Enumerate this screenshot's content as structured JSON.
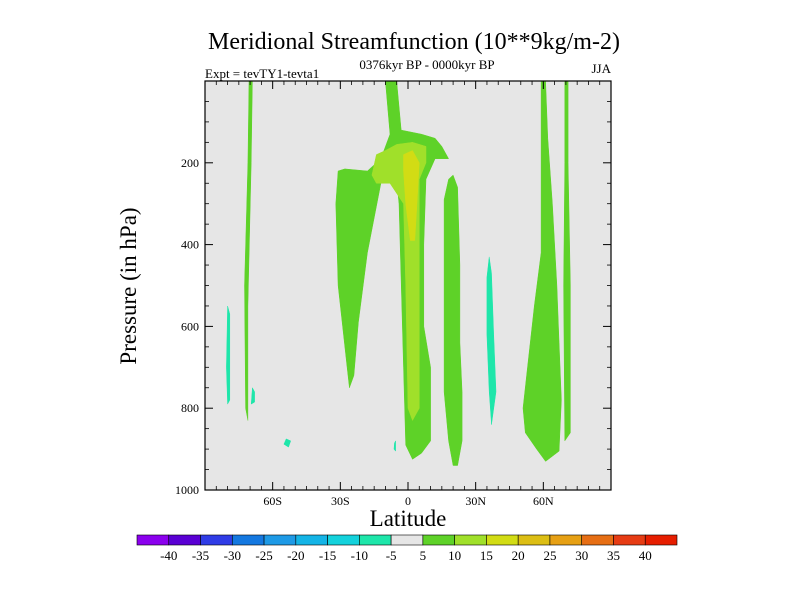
{
  "chart_data": {
    "type": "heatmap",
    "title": "Meridional Streamfunction (10**9kg/m-2)",
    "subtitle": "0376kyr BP - 0000kyr BP",
    "left_label": "Expt = tevTY1-tevta1",
    "right_label": "JJA",
    "xlabel": "Latitude",
    "ylabel": "Pressure (in hPa)",
    "xlim": [
      -90,
      90
    ],
    "ylim": [
      1000,
      0
    ],
    "x_ticks": [
      {
        "value": -60,
        "label": "60S"
      },
      {
        "value": -30,
        "label": "30S"
      },
      {
        "value": 0,
        "label": "0"
      },
      {
        "value": 30,
        "label": "30N"
      },
      {
        "value": 60,
        "label": "60N"
      }
    ],
    "y_ticks": [
      {
        "value": 200,
        "label": "200"
      },
      {
        "value": 400,
        "label": "400"
      },
      {
        "value": 600,
        "label": "600"
      },
      {
        "value": 800,
        "label": "800"
      },
      {
        "value": 1000,
        "label": "1000"
      }
    ],
    "background_color": "#e6e6e6",
    "colorbar": {
      "labels": [
        "-40",
        "-35",
        "-30",
        "-25",
        "-20",
        "-15",
        "-10",
        "-5",
        "5",
        "10",
        "15",
        "20",
        "25",
        "30",
        "35",
        "40"
      ],
      "colors": [
        "#8b00ee",
        "#5a00d4",
        "#2f3ce6",
        "#1478e0",
        "#1e9ae6",
        "#14b4e6",
        "#14d2dc",
        "#1ee6aa",
        "#e6e6e6",
        "#5ed228",
        "#a0e02a",
        "#d2dc14",
        "#dcbe14",
        "#e6a014",
        "#e66e14",
        "#e63c14",
        "#e61e00"
      ]
    },
    "regions": [
      {
        "level": 5,
        "color": "#5ed228",
        "points": [
          [
            -70,
            0
          ],
          [
            -69,
            0
          ],
          [
            -69.5,
            200
          ],
          [
            -71,
            550
          ],
          [
            -71,
            830
          ],
          [
            -72,
            800
          ],
          [
            -72.5,
            500
          ],
          [
            -71,
            200
          ],
          [
            -70.5,
            0
          ]
        ]
      },
      {
        "level": 5,
        "color": "#5ed228",
        "points": [
          [
            -31,
            220
          ],
          [
            -28,
            215
          ],
          [
            -18,
            220
          ],
          [
            -12,
            190
          ],
          [
            -8,
            130
          ],
          [
            -10,
            0
          ],
          [
            -5,
            0
          ],
          [
            -3,
            120
          ],
          [
            6,
            130
          ],
          [
            12,
            140
          ],
          [
            15,
            160
          ],
          [
            18,
            190
          ],
          [
            12,
            190
          ],
          [
            8,
            240
          ],
          [
            7,
            400
          ],
          [
            7,
            600
          ],
          [
            10,
            700
          ],
          [
            10,
            880
          ],
          [
            6,
            910
          ],
          [
            2,
            925
          ],
          [
            -1,
            890
          ],
          [
            -2,
            700
          ],
          [
            -4,
            300
          ],
          [
            -5,
            245
          ],
          [
            -12,
            250
          ],
          [
            -18,
            420
          ],
          [
            -22,
            590
          ],
          [
            -24,
            720
          ],
          [
            -26,
            750
          ],
          [
            -27,
            700
          ],
          [
            -29,
            600
          ],
          [
            -31,
            500
          ],
          [
            -32,
            300
          ]
        ]
      },
      {
        "level": 10,
        "color": "#a0e02a",
        "points": [
          [
            -16,
            230
          ],
          [
            -14,
            180
          ],
          [
            -10,
            170
          ],
          [
            -5,
            155
          ],
          [
            2,
            150
          ],
          [
            8,
            160
          ],
          [
            8,
            200
          ],
          [
            5,
            240
          ],
          [
            5,
            500
          ],
          [
            5,
            800
          ],
          [
            2,
            830
          ],
          [
            0,
            800
          ],
          [
            -1,
            500
          ],
          [
            -2,
            300
          ],
          [
            -8,
            250
          ],
          [
            -14,
            250
          ]
        ]
      },
      {
        "level": 15,
        "color": "#d2dc14",
        "points": [
          [
            -2,
            180
          ],
          [
            2,
            170
          ],
          [
            5,
            200
          ],
          [
            4,
            300
          ],
          [
            3,
            390
          ],
          [
            1,
            390
          ],
          [
            -1,
            300
          ],
          [
            -2,
            220
          ]
        ]
      },
      {
        "level": 5,
        "color": "#5ed228",
        "points": [
          [
            16,
            290
          ],
          [
            18,
            240
          ],
          [
            20,
            230
          ],
          [
            22,
            260
          ],
          [
            23,
            450
          ],
          [
            23,
            640
          ],
          [
            24,
            760
          ],
          [
            24,
            880
          ],
          [
            22,
            940
          ],
          [
            20,
            940
          ],
          [
            18,
            880
          ],
          [
            16,
            760
          ],
          [
            16,
            500
          ]
        ]
      },
      {
        "level": 5,
        "color": "#5ed228",
        "points": [
          [
            59,
            0
          ],
          [
            61,
            0
          ],
          [
            62,
            140
          ],
          [
            64,
            300
          ],
          [
            66,
            500
          ],
          [
            67,
            640
          ],
          [
            68,
            780
          ],
          [
            67,
            905
          ],
          [
            61,
            930
          ],
          [
            57,
            900
          ],
          [
            52,
            860
          ],
          [
            51,
            800
          ],
          [
            53,
            700
          ],
          [
            56,
            550
          ],
          [
            59,
            420
          ],
          [
            59,
            200
          ]
        ]
      },
      {
        "level": 5,
        "color": "#5ed228",
        "points": [
          [
            69.5,
            0
          ],
          [
            71,
            0
          ],
          [
            71,
            200
          ],
          [
            72,
            500
          ],
          [
            72,
            860
          ],
          [
            69.5,
            880
          ],
          [
            69,
            500
          ],
          [
            69.5,
            200
          ]
        ]
      },
      {
        "level": -5,
        "color": "#1ee6aa",
        "points": [
          [
            -80,
            550
          ],
          [
            -79,
            570
          ],
          [
            -79,
            780
          ],
          [
            -80,
            790
          ],
          [
            -80.5,
            700
          ]
        ]
      },
      {
        "level": -5,
        "color": "#1ee6aa",
        "points": [
          [
            -69,
            750
          ],
          [
            -68,
            760
          ],
          [
            -68,
            785
          ],
          [
            -69.5,
            790
          ]
        ]
      },
      {
        "level": -5,
        "color": "#1ee6aa",
        "points": [
          [
            -54,
            875
          ],
          [
            -52,
            880
          ],
          [
            -53,
            895
          ],
          [
            -55,
            888
          ]
        ]
      },
      {
        "level": -5,
        "color": "#1ee6aa",
        "points": [
          [
            36,
            430
          ],
          [
            37,
            470
          ],
          [
            38,
            620
          ],
          [
            39,
            760
          ],
          [
            37,
            840
          ],
          [
            36,
            760
          ],
          [
            35,
            620
          ],
          [
            35,
            480
          ]
        ]
      },
      {
        "level": -5,
        "color": "#1ee6aa",
        "points": [
          [
            -6,
            885
          ],
          [
            -5.5,
            880
          ],
          [
            -5.5,
            905
          ],
          [
            -6.2,
            900
          ]
        ]
      }
    ]
  }
}
